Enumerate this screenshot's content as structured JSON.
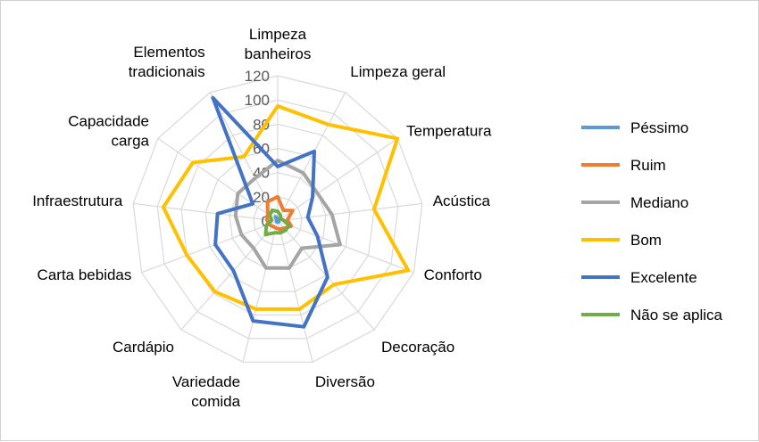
{
  "chart_data": {
    "type": "radar",
    "categories": [
      [
        "Limpeza",
        "banheiros"
      ],
      [
        "Limpeza geral"
      ],
      [
        "Temperatura"
      ],
      [
        "Acústica"
      ],
      [
        "Conforto"
      ],
      [
        "Decoração"
      ],
      [
        "Diversão"
      ],
      [
        "Variedade",
        "comida"
      ],
      [
        "Cardápio"
      ],
      [
        "Carta bebidas"
      ],
      [
        "Infraestrutura"
      ],
      [
        "Capacidade",
        "carga"
      ],
      [
        "Elementos",
        "tradicionais"
      ]
    ],
    "rlim": [
      0,
      120
    ],
    "ticks": [
      "0",
      "20",
      "40",
      "60",
      "80",
      "100",
      "120"
    ],
    "tick_values": [
      0,
      20,
      40,
      60,
      80,
      100,
      120
    ],
    "legend_position": "right",
    "series": [
      {
        "name": "Péssimo",
        "color": "#5B9BD5",
        "values": [
          2,
          1,
          1,
          1,
          1,
          1,
          1,
          1,
          1,
          1,
          1,
          1,
          4
        ]
      },
      {
        "name": "Ruim",
        "color": "#ED7D31",
        "values": [
          20,
          10,
          15,
          8,
          12,
          8,
          7,
          6,
          6,
          8,
          9,
          10,
          18
        ]
      },
      {
        "name": "Mediano",
        "color": "#A5A5A5",
        "values": [
          50,
          45,
          40,
          45,
          55,
          30,
          40,
          40,
          30,
          32,
          35,
          40,
          40
        ]
      },
      {
        "name": "Bom",
        "color": "#FFC000",
        "values": [
          95,
          90,
          120,
          80,
          115,
          70,
          75,
          75,
          78,
          80,
          95,
          85,
          60
        ]
      },
      {
        "name": "Excelente",
        "color": "#4472C4",
        "values": [
          45,
          65,
          35,
          25,
          35,
          62,
          90,
          85,
          55,
          55,
          50,
          25,
          115
        ]
      },
      {
        "name": "Não se aplica",
        "color": "#70AD47",
        "values": [
          8,
          5,
          3,
          5,
          10,
          10,
          10,
          10,
          15,
          10,
          5,
          8,
          10
        ]
      }
    ]
  }
}
